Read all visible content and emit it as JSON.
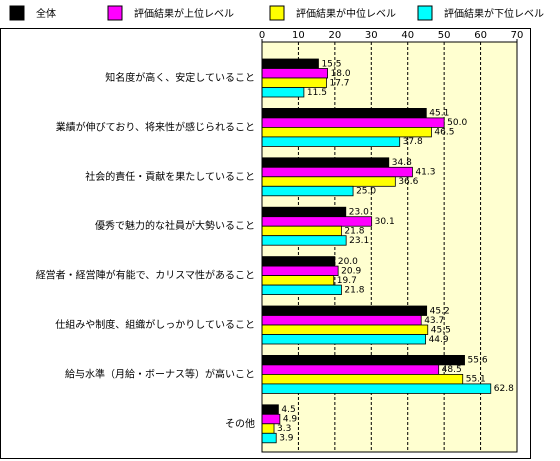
{
  "chart_data": {
    "type": "hbar",
    "categories": [
      "知名度が高く、安定していること",
      "業績が伸びており、将来性が感じられること",
      "社会的責任・貢献を果たしていること",
      "優秀で魅力的な社員が大勢いること",
      "経営者・経営陣が有能で、カリスマ性があること",
      "仕組みや制度、組織がしっかりしていること",
      "給与水準（月給・ボーナス等）が高いこと",
      "その他"
    ],
    "series": [
      {
        "name": "全体",
        "color": "#000000",
        "values": [
          15.5,
          45.1,
          34.8,
          23.0,
          20.0,
          45.2,
          55.6,
          4.5
        ],
        "value_labels": [
          "15.5",
          "45.1",
          "34.8",
          "23.0",
          "20.0",
          "45.2",
          "55.6",
          "4.5"
        ]
      },
      {
        "name": "評価結果が上位レベル",
        "color": "#ff00ff",
        "values": [
          18.0,
          50.0,
          41.3,
          30.1,
          20.9,
          43.7,
          48.5,
          4.9
        ],
        "value_labels": [
          "18.0",
          "50.0",
          "41.3",
          "30.1",
          "20.9",
          "43.7",
          "48.5",
          "4.9"
        ]
      },
      {
        "name": "評価結果が中位レベル",
        "color": "#ffff00",
        "values": [
          17.7,
          46.5,
          36.6,
          21.8,
          19.7,
          45.5,
          55.1,
          3.3
        ],
        "value_labels": [
          "17.7",
          "46.5",
          "36.6",
          "21.8",
          "19.7",
          "45.5",
          "55.1",
          "3.3"
        ]
      },
      {
        "name": "評価結果が下位レベル",
        "color": "#00ffff",
        "values": [
          11.5,
          37.8,
          25.0,
          23.1,
          21.8,
          44.9,
          62.8,
          3.9
        ],
        "value_labels": [
          "11.5",
          "37.8",
          "25.0",
          "23.1",
          "21.8",
          "44.9",
          "62.8",
          "3.9"
        ]
      }
    ],
    "xlim": [
      0,
      70
    ],
    "xticks": [
      0,
      10,
      20,
      30,
      40,
      50,
      60,
      70
    ],
    "grid": true
  }
}
